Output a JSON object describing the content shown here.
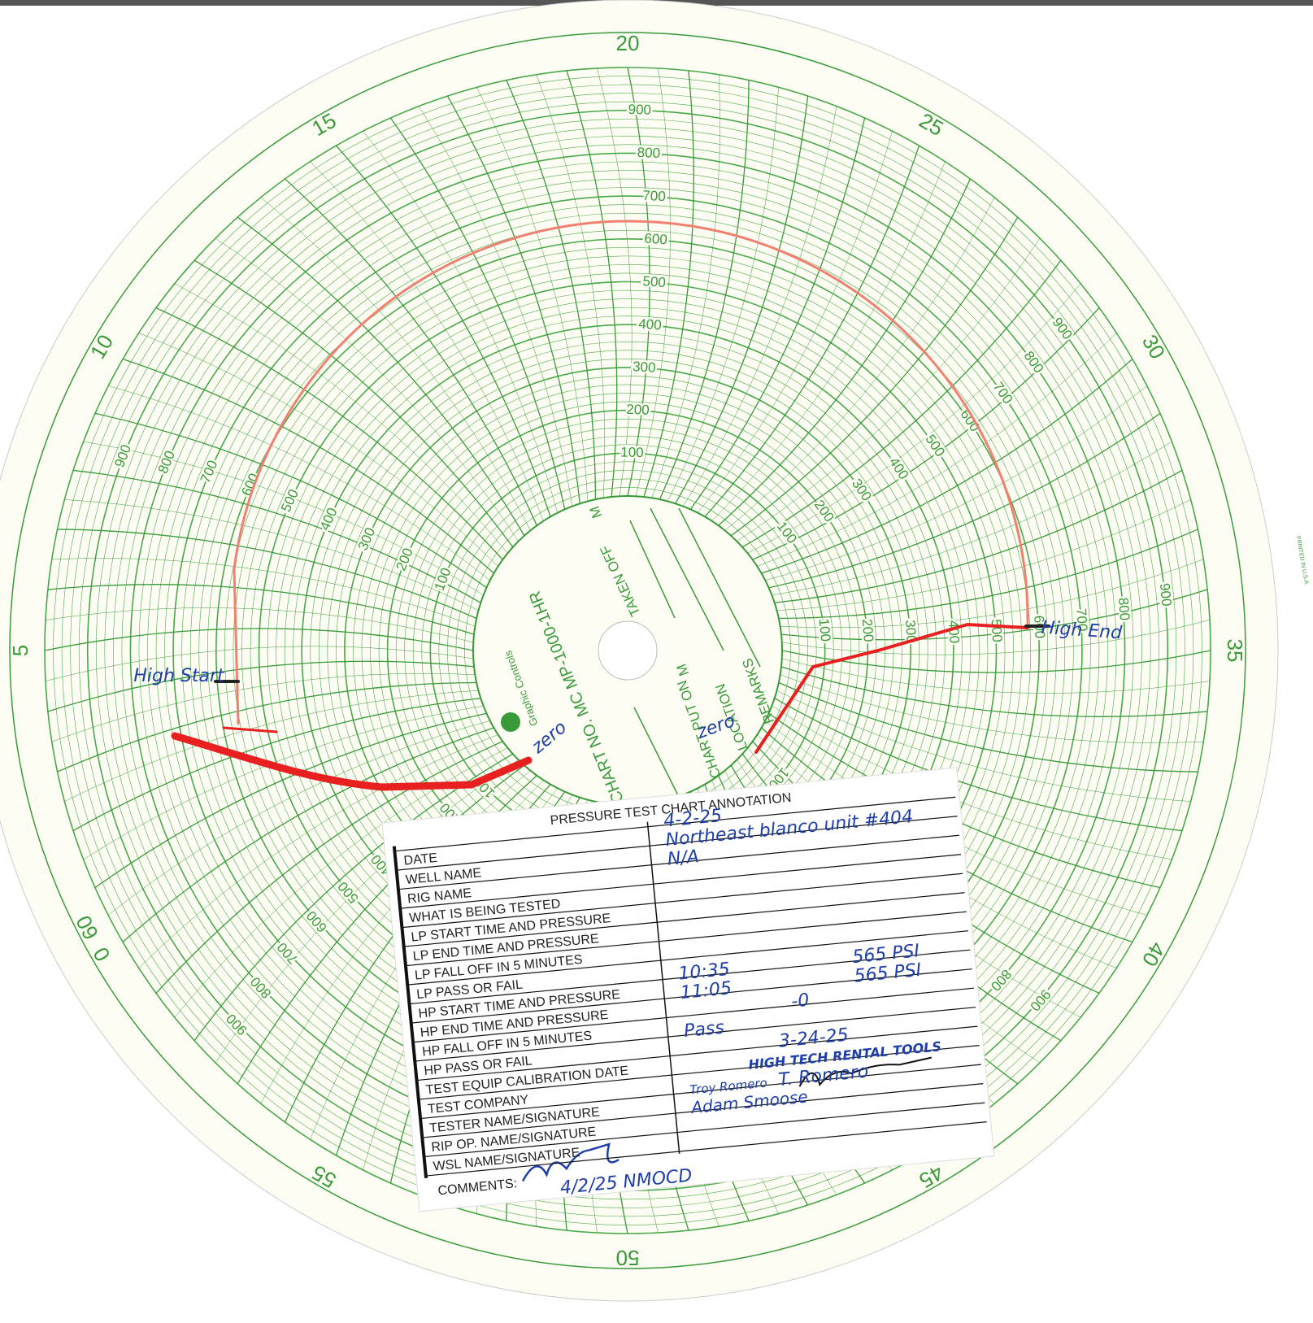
{
  "chart_disc": {
    "minute_labels": [
      0,
      5,
      10,
      15,
      20,
      25,
      30,
      35,
      40,
      45,
      50,
      55,
      60
    ],
    "pressure_labels": [
      100,
      200,
      300,
      400,
      500,
      600,
      700,
      800,
      900
    ],
    "center": {
      "chart_no": "CHART NO. MC MP-1000-1HR",
      "taken_off": "TAKEN OFF",
      "put_on": "CHART PUT ON",
      "location": "LOCATION",
      "remarks": "REMARKS",
      "m": "M",
      "brand": "Graphic Controls"
    },
    "printed": "PRINTED IN U.S.A."
  },
  "markings": {
    "high_start": "High Start",
    "high_end": "High End",
    "zero": "zero"
  },
  "card": {
    "title": "PRESSURE TEST CHART ANNOTATION",
    "rows": [
      {
        "label": "DATE",
        "values": [
          "4-2-25"
        ]
      },
      {
        "label": "WELL NAME",
        "values": [
          "Northeast blanco unit #404"
        ]
      },
      {
        "label": "RIG NAME",
        "values": [
          "N/A"
        ]
      },
      {
        "label": "WHAT IS BEING TESTED"
      },
      {
        "label": "LP START TIME AND PRESSURE"
      },
      {
        "label": "LP END TIME AND PRESSURE"
      },
      {
        "label": "LP FALL OFF IN 5 MINUTES"
      },
      {
        "label": "LP PASS OR FAIL"
      },
      {
        "label": "HP START TIME AND PRESSURE",
        "values": [
          "10:35",
          "565 PSI"
        ]
      },
      {
        "label": "HP END TIME AND PRESSURE",
        "values": [
          "11:05",
          "565 PSI"
        ]
      },
      {
        "label": "HP FALL OFF IN 5 MINUTES",
        "values": [
          "-0"
        ]
      },
      {
        "label": "HP PASS OR FAIL",
        "values": [
          "Pass"
        ]
      },
      {
        "label": "TEST EQUIP CALIBRATION DATE",
        "values": [
          "3-24-25"
        ]
      },
      {
        "label": "TEST COMPANY",
        "values": [
          "HIGH TECH RENTAL TOOLS"
        ]
      },
      {
        "label": "TESTER NAME/SIGNATURE",
        "values": [
          "Troy Romero",
          "T. Romero"
        ]
      },
      {
        "label": "RIP OP. NAME/SIGNATURE",
        "values": [
          "Adam Smoose"
        ]
      },
      {
        "label": "WSL NAME/SIGNATURE"
      }
    ],
    "comments_label": "COMMENTS:",
    "comments": "4/2/25 NMOCD"
  }
}
